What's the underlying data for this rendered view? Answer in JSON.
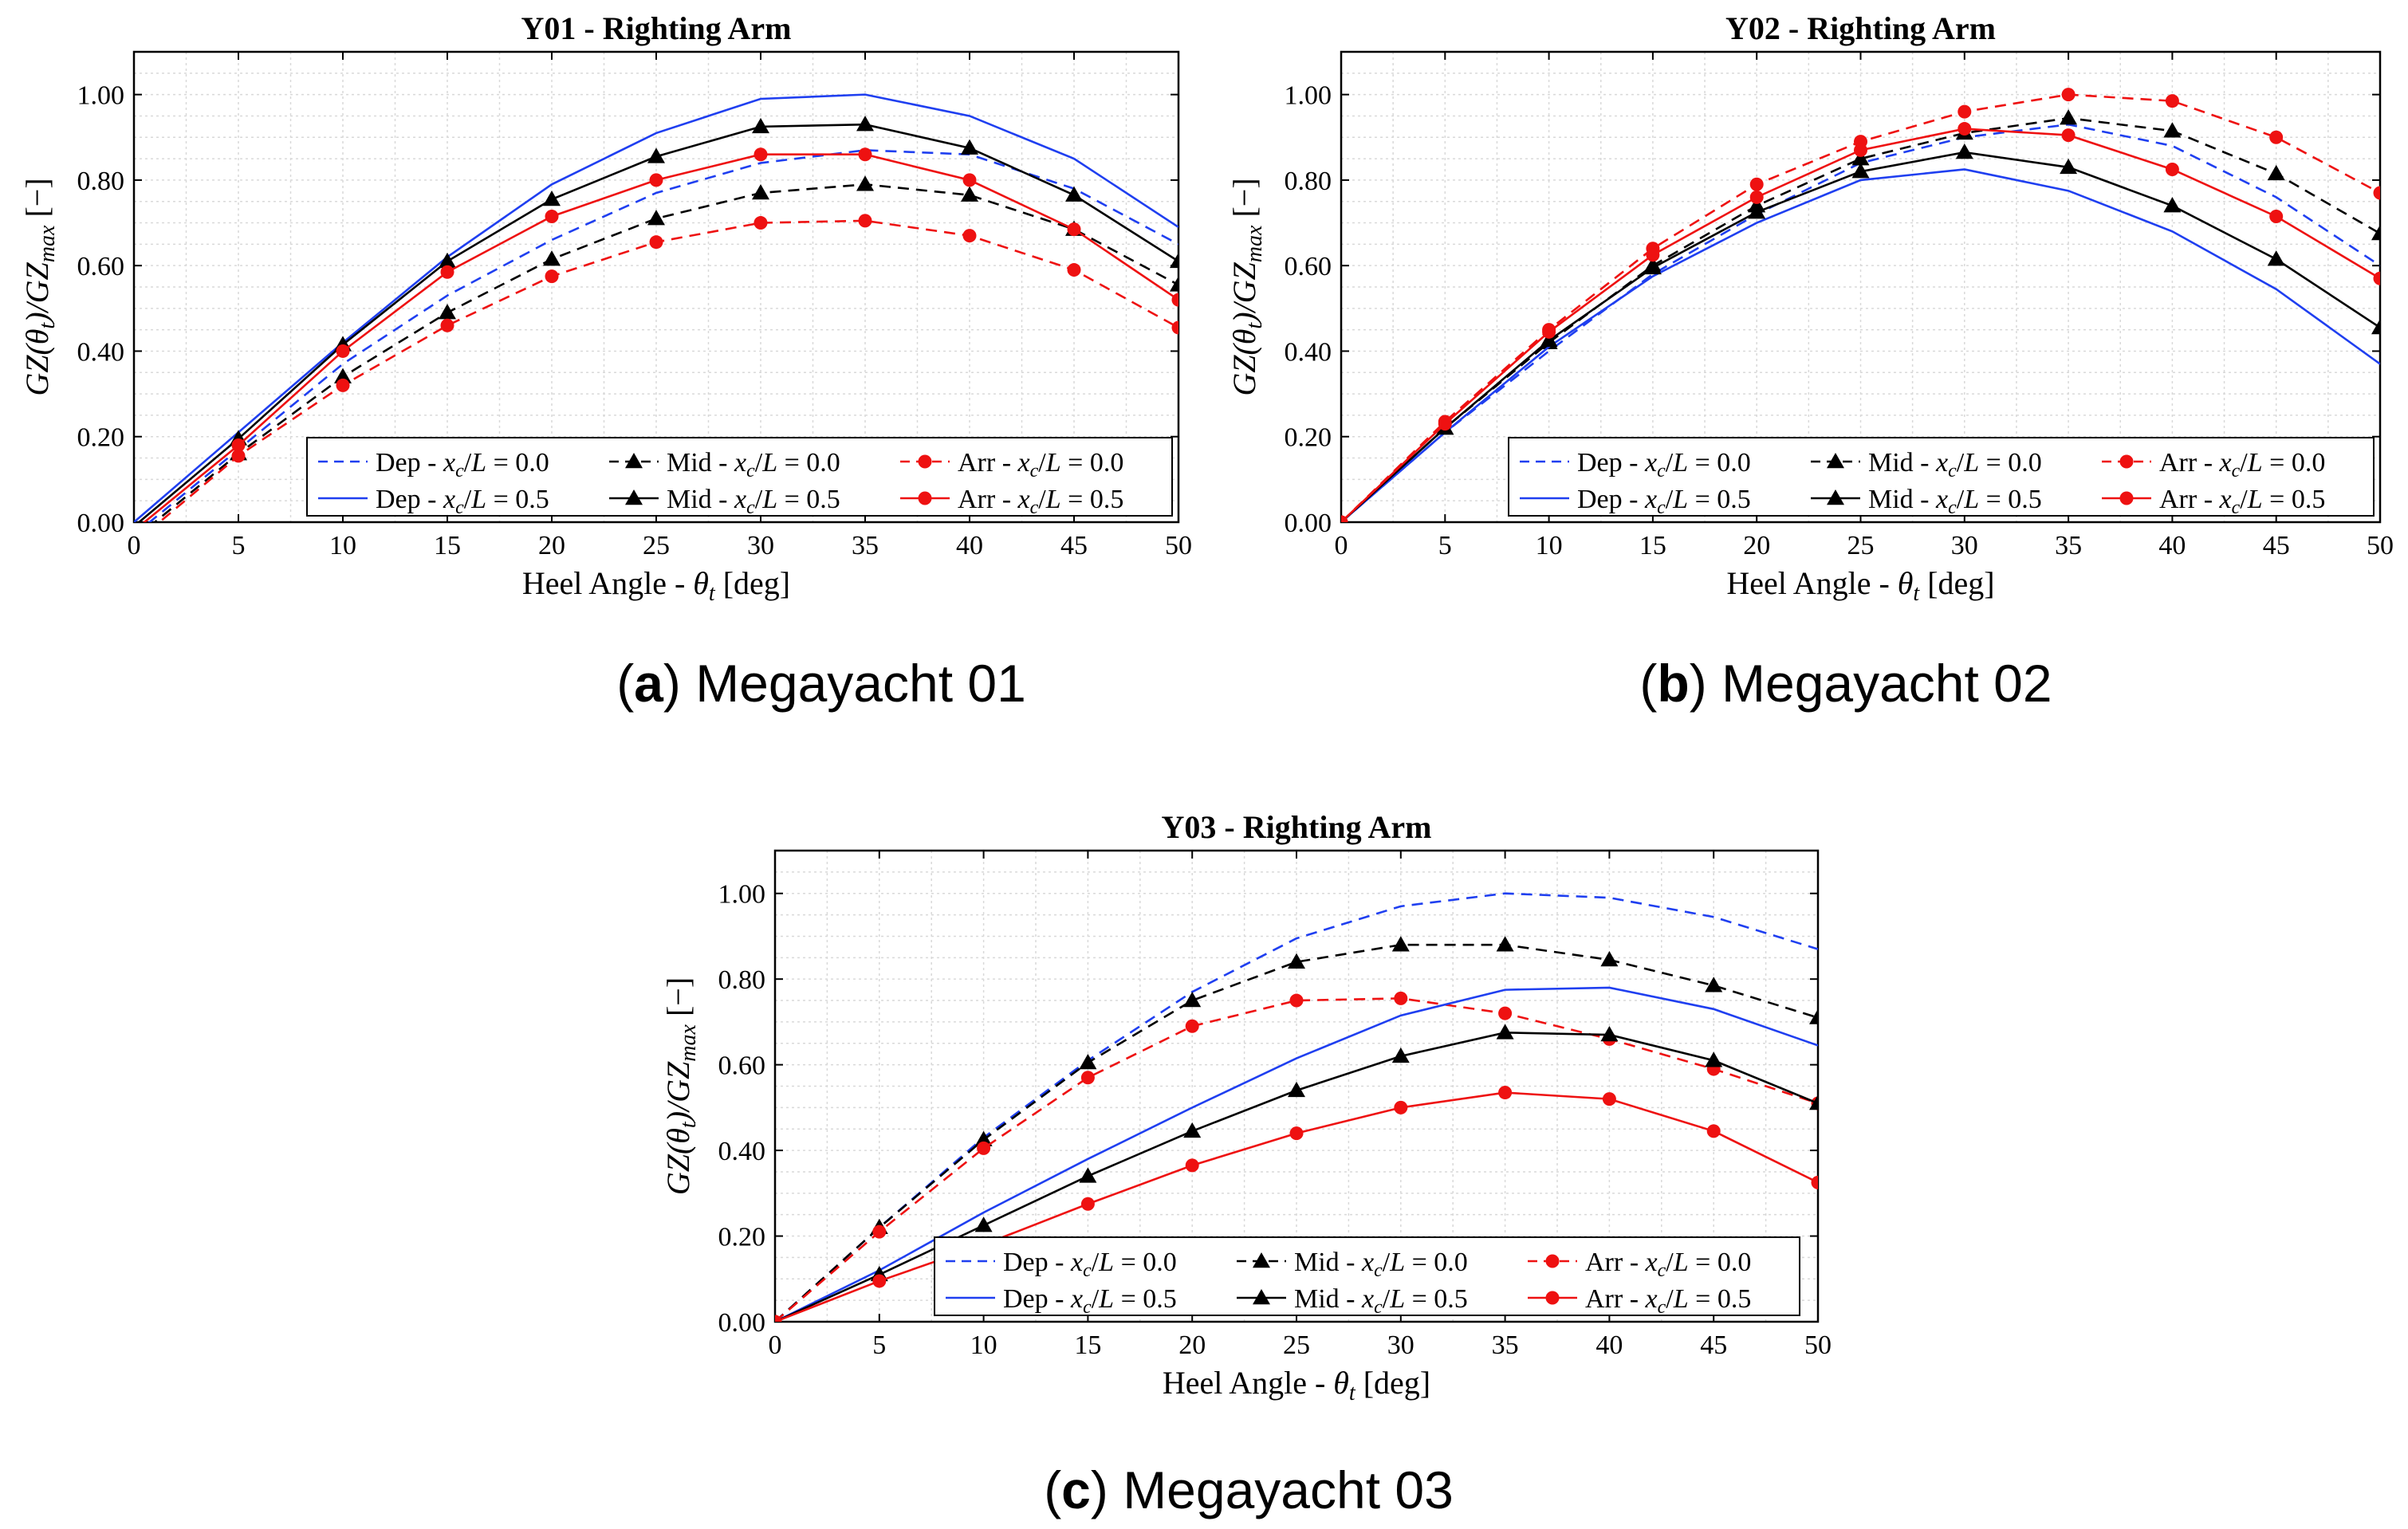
{
  "colors": {
    "blue": "#1f3ff0",
    "black": "#000000",
    "red": "#ee1111"
  },
  "chart_data": [
    {
      "type": "line",
      "title": "Y01 - Righting Arm",
      "caption_letter": "a",
      "caption_text": "Megayacht 01",
      "xlabel": "Heel Angle - θt [deg]",
      "ylabel": "GZ(θt)/GZmax [−]",
      "xlim": [
        0,
        50
      ],
      "ylim": [
        0,
        1.1
      ],
      "xticks": [
        0,
        5,
        10,
        15,
        20,
        25,
        30,
        35,
        40,
        45,
        50
      ],
      "yticks": [
        "0.00",
        "0.20",
        "0.40",
        "0.60",
        "0.80",
        "1.00"
      ],
      "x": [
        0,
        5,
        10,
        15,
        20,
        25,
        30,
        35,
        40,
        45,
        50
      ],
      "series": [
        {
          "name": "Dep - xc/L = 0.0",
          "color": "blue",
          "dash": true,
          "marker": "none",
          "values": [
            -0.03,
            0.17,
            0.37,
            0.53,
            0.66,
            0.77,
            0.84,
            0.87,
            0.86,
            0.78,
            0.65
          ]
        },
        {
          "name": "Mid - xc/L = 0.0",
          "color": "black",
          "dash": true,
          "marker": "triangle",
          "values": [
            -0.04,
            0.16,
            0.34,
            0.49,
            0.615,
            0.71,
            0.77,
            0.79,
            0.765,
            0.685,
            0.555
          ]
        },
        {
          "name": "Arr - xc/L = 0.0",
          "color": "red",
          "dash": true,
          "marker": "circle",
          "values": [
            -0.05,
            0.155,
            0.32,
            0.46,
            0.575,
            0.655,
            0.7,
            0.705,
            0.67,
            0.59,
            0.455
          ]
        },
        {
          "name": "Dep - xc/L = 0.5",
          "color": "blue",
          "dash": false,
          "marker": "none",
          "values": [
            0.0,
            0.21,
            0.42,
            0.62,
            0.79,
            0.91,
            0.99,
            1.0,
            0.95,
            0.85,
            0.69
          ]
        },
        {
          "name": "Mid - xc/L = 0.5",
          "color": "black",
          "dash": false,
          "marker": "triangle",
          "values": [
            -0.01,
            0.195,
            0.415,
            0.61,
            0.755,
            0.855,
            0.925,
            0.93,
            0.875,
            0.765,
            0.61
          ]
        },
        {
          "name": "Arr - xc/L = 0.5",
          "color": "red",
          "dash": false,
          "marker": "circle",
          "values": [
            -0.02,
            0.18,
            0.4,
            0.585,
            0.715,
            0.8,
            0.86,
            0.86,
            0.8,
            0.685,
            0.52
          ]
        }
      ]
    },
    {
      "type": "line",
      "title": "Y02 - Righting Arm",
      "caption_letter": "b",
      "caption_text": "Megayacht 02",
      "xlabel": "Heel Angle - θt [deg]",
      "ylabel": "GZ(θt)/GZmax [−]",
      "xlim": [
        0,
        50
      ],
      "ylim": [
        0,
        1.1
      ],
      "xticks": [
        0,
        5,
        10,
        15,
        20,
        25,
        30,
        35,
        40,
        45,
        50
      ],
      "yticks": [
        "0.00",
        "0.20",
        "0.40",
        "0.60",
        "0.80",
        "1.00"
      ],
      "x": [
        0,
        5,
        10,
        15,
        20,
        25,
        30,
        35,
        40,
        45,
        50
      ],
      "series": [
        {
          "name": "Dep - xc/L = 0.0",
          "color": "blue",
          "dash": true,
          "marker": "none",
          "values": [
            0.0,
            0.21,
            0.4,
            0.58,
            0.72,
            0.84,
            0.9,
            0.93,
            0.88,
            0.76,
            0.6
          ]
        },
        {
          "name": "Mid - xc/L = 0.0",
          "color": "black",
          "dash": true,
          "marker": "triangle",
          "values": [
            0.0,
            0.22,
            0.42,
            0.6,
            0.74,
            0.85,
            0.91,
            0.945,
            0.915,
            0.815,
            0.675
          ]
        },
        {
          "name": "Arr - xc/L = 0.0",
          "color": "red",
          "dash": true,
          "marker": "circle",
          "values": [
            0.0,
            0.235,
            0.45,
            0.64,
            0.79,
            0.89,
            0.96,
            1.0,
            0.985,
            0.9,
            0.77
          ]
        },
        {
          "name": "Dep - xc/L = 0.5",
          "color": "blue",
          "dash": false,
          "marker": "none",
          "values": [
            0.0,
            0.21,
            0.41,
            0.575,
            0.7,
            0.8,
            0.825,
            0.775,
            0.68,
            0.545,
            0.37
          ]
        },
        {
          "name": "Mid - xc/L = 0.5",
          "color": "black",
          "dash": false,
          "marker": "triangle",
          "values": [
            0.0,
            0.22,
            0.425,
            0.595,
            0.725,
            0.82,
            0.865,
            0.83,
            0.74,
            0.615,
            0.455
          ]
        },
        {
          "name": "Arr - xc/L = 0.5",
          "color": "red",
          "dash": false,
          "marker": "circle",
          "values": [
            0.0,
            0.23,
            0.445,
            0.625,
            0.76,
            0.87,
            0.92,
            0.905,
            0.825,
            0.715,
            0.57
          ]
        }
      ]
    },
    {
      "type": "line",
      "title": "Y03 - Righting Arm",
      "caption_letter": "c",
      "caption_text": "Megayacht 03",
      "xlabel": "Heel Angle - θt [deg]",
      "ylabel": "GZ(θt)/GZmax [−]",
      "xlim": [
        0,
        50
      ],
      "ylim": [
        0,
        1.1
      ],
      "xticks": [
        0,
        5,
        10,
        15,
        20,
        25,
        30,
        35,
        40,
        45,
        50
      ],
      "yticks": [
        "0.00",
        "0.20",
        "0.40",
        "0.60",
        "0.80",
        "1.00"
      ],
      "x": [
        0,
        5,
        10,
        15,
        20,
        25,
        30,
        35,
        40,
        45,
        50
      ],
      "series": [
        {
          "name": "Dep - xc/L = 0.0",
          "color": "blue",
          "dash": true,
          "marker": "none",
          "values": [
            0.0,
            0.22,
            0.43,
            0.61,
            0.77,
            0.895,
            0.97,
            1.0,
            0.99,
            0.945,
            0.87
          ]
        },
        {
          "name": "Mid - xc/L = 0.0",
          "color": "black",
          "dash": true,
          "marker": "triangle",
          "values": [
            0.0,
            0.22,
            0.425,
            0.605,
            0.75,
            0.84,
            0.88,
            0.88,
            0.845,
            0.785,
            0.71
          ]
        },
        {
          "name": "Arr - xc/L = 0.0",
          "color": "red",
          "dash": true,
          "marker": "circle",
          "values": [
            0.0,
            0.21,
            0.405,
            0.57,
            0.69,
            0.75,
            0.755,
            0.72,
            0.66,
            0.59,
            0.51
          ]
        },
        {
          "name": "Dep - xc/L = 0.5",
          "color": "blue",
          "dash": false,
          "marker": "none",
          "values": [
            0.0,
            0.12,
            0.255,
            0.38,
            0.5,
            0.615,
            0.715,
            0.775,
            0.78,
            0.73,
            0.645
          ]
        },
        {
          "name": "Mid - xc/L = 0.5",
          "color": "black",
          "dash": false,
          "marker": "triangle",
          "values": [
            0.0,
            0.11,
            0.225,
            0.34,
            0.445,
            0.54,
            0.62,
            0.675,
            0.67,
            0.61,
            0.51
          ]
        },
        {
          "name": "Arr - xc/L = 0.5",
          "color": "red",
          "dash": false,
          "marker": "circle",
          "values": [
            0.0,
            0.095,
            0.18,
            0.275,
            0.365,
            0.44,
            0.5,
            0.535,
            0.52,
            0.445,
            0.325
          ]
        }
      ]
    }
  ]
}
